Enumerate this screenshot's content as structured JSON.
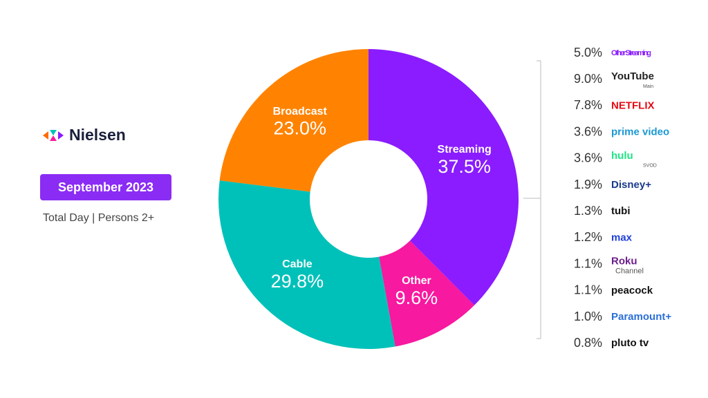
{
  "brand": "Nielsen",
  "chart_data": {
    "type": "donut",
    "title": "September 2023",
    "subtitle": "Total Day | Persons 2+",
    "categories": [
      "Streaming",
      "Other",
      "Cable",
      "Broadcast"
    ],
    "values": [
      37.5,
      9.6,
      29.8,
      23.0
    ],
    "value_labels": [
      "37.5%",
      "9.6%",
      "29.8%",
      "23.0%"
    ],
    "colors": [
      "#8a1cff",
      "#f7199f",
      "#00c1b9",
      "#ff8300"
    ]
  },
  "breakdown": {
    "type": "list",
    "names": [
      "Other Streaming",
      "YouTube",
      "NETFLIX",
      "prime video",
      "hulu",
      "Disney+",
      "tubi",
      "max",
      "Roku",
      "peacock",
      "Paramount+",
      "pluto tv"
    ],
    "subs": [
      null,
      "Main",
      null,
      null,
      "SVOD",
      null,
      null,
      null,
      "Channel",
      null,
      null,
      null
    ],
    "colors": [
      "#8a1cff",
      "#222222",
      "#e50914",
      "#1a98d5",
      "#1ce783",
      "#1a3a8a",
      "#111111",
      "#1f3fd8",
      "#6c1d8c",
      "#111111",
      "#2a6fd8",
      "#111111"
    ],
    "values": [
      5.0,
      9.0,
      7.8,
      3.6,
      3.6,
      1.9,
      1.3,
      1.2,
      1.1,
      1.1,
      1.0,
      0.8
    ],
    "value_labels": [
      "5.0%",
      "9.0%",
      "7.8%",
      "3.6%",
      "3.6%",
      "1.9%",
      "1.3%",
      "1.2%",
      "1.1%",
      "1.1%",
      "1.0%",
      "0.8%"
    ]
  }
}
